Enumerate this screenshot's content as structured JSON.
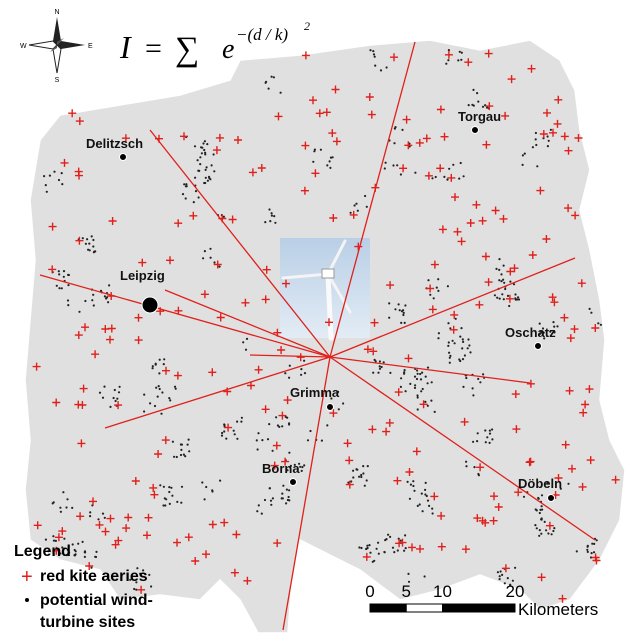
{
  "formula": {
    "lhs": "I",
    "op": "=",
    "sum": "∑",
    "base": "e",
    "exponent": "−(d / k)",
    "power": "2"
  },
  "compass": {
    "north": "N",
    "east": "E",
    "south": "S",
    "west": "W"
  },
  "cities": [
    {
      "name": "Delitzsch"
    },
    {
      "name": "Torgau"
    },
    {
      "name": "Leipzig"
    },
    {
      "name": "Oschatz"
    },
    {
      "name": "Grimma"
    },
    {
      "name": "Borna"
    },
    {
      "name": "Döbeln"
    }
  ],
  "legend": {
    "title": "Legend",
    "items": [
      "red kite aeries",
      "potential wind-",
      "turbine sites"
    ]
  },
  "scale": {
    "ticks": [
      0,
      5,
      10,
      20
    ],
    "unit": "Kilometers"
  }
}
